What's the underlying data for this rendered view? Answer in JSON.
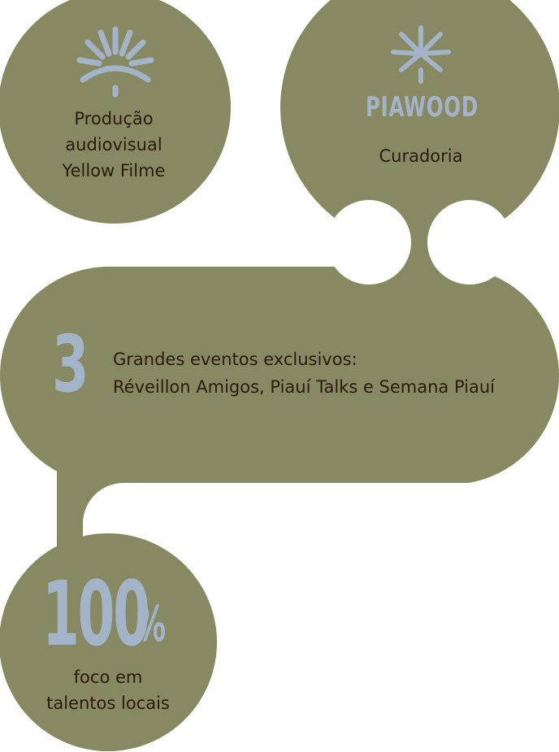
{
  "colors": {
    "blob": "#878962",
    "accent": "#a4b4c8",
    "text": "#2b1a0e"
  },
  "circle_yellow": {
    "icon": "sun-rays-icon",
    "line1": "Produção",
    "line2": "audiovisual",
    "line3": "Yellow Filme"
  },
  "circle_piawood": {
    "icon": "palm-star-icon",
    "logo": "PIAWOOD",
    "label": "Curadoria"
  },
  "events": {
    "number": "3",
    "line1": "Grandes eventos exclusivos:",
    "line2": "Réveillon Amigos, Piauí Talks e Semana Piauí"
  },
  "talents": {
    "number": "100",
    "percent": "%",
    "line1": "foco em",
    "line2": "talentos locais"
  }
}
